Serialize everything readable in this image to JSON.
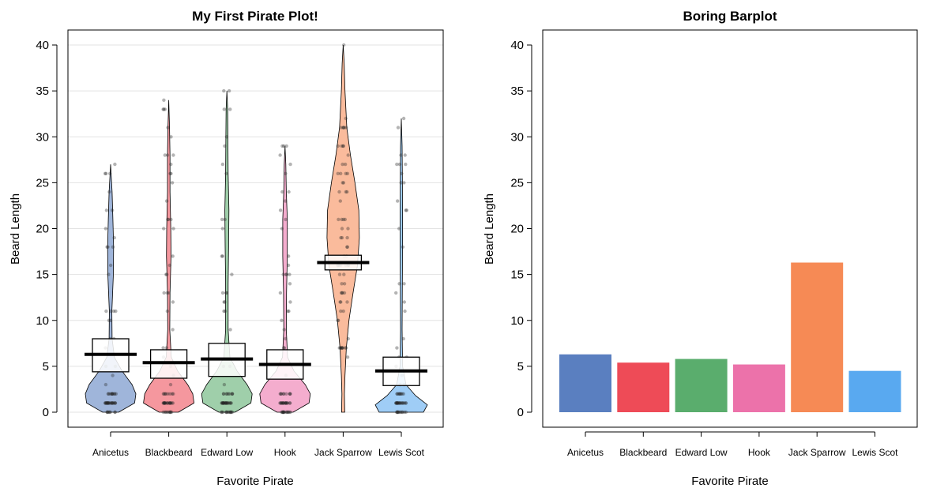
{
  "chart_data": [
    {
      "type": "pirate",
      "title": "My First Pirate Plot!",
      "xlabel": "Favorite Pirate",
      "ylabel": "Beard Length",
      "ylim": [
        0,
        40
      ],
      "yticks": [
        "0",
        "5",
        "10",
        "15",
        "20",
        "25",
        "30",
        "35",
        "40"
      ],
      "grid": true,
      "categories": [
        "Anicetus",
        "Blackbeard",
        "Edward Low",
        "Hook",
        "Jack Sparrow",
        "Lewis Scot"
      ],
      "means": [
        6.3,
        5.4,
        5.8,
        5.2,
        16.3,
        4.5
      ],
      "inference_bands": [
        [
          4.4,
          8.0
        ],
        [
          3.7,
          6.8
        ],
        [
          3.9,
          7.5
        ],
        [
          3.6,
          6.8
        ],
        [
          15.5,
          17.1
        ],
        [
          2.9,
          6.0
        ]
      ],
      "max_values": [
        27,
        34,
        35,
        29,
        40,
        32
      ],
      "colors": [
        "#5a7fc0",
        "#ee4b57",
        "#5aad6d",
        "#ec72aa",
        "#f68a55",
        "#59a9f0"
      ]
    },
    {
      "type": "bar",
      "title": "Boring Barplot",
      "xlabel": "Favorite Pirate",
      "ylabel": "Beard Length",
      "ylim": [
        0,
        40
      ],
      "yticks": [
        "0",
        "5",
        "10",
        "15",
        "20",
        "25",
        "30",
        "35",
        "40"
      ],
      "grid": false,
      "categories": [
        "Anicetus",
        "Blackbeard",
        "Edward Low",
        "Hook",
        "Jack Sparrow",
        "Lewis Scot"
      ],
      "values": [
        6.3,
        5.4,
        5.8,
        5.2,
        16.3,
        4.5
      ],
      "colors": [
        "#5a7fc0",
        "#ee4b57",
        "#5aad6d",
        "#ec72aa",
        "#f68a55",
        "#59a9f0"
      ]
    }
  ]
}
